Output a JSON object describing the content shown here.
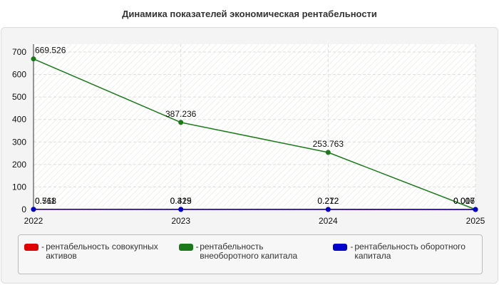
{
  "chart_data": {
    "type": "line",
    "title": "Динамика показателей экономическая рентабельности",
    "categories": [
      "2022",
      "2023",
      "2024",
      "2025"
    ],
    "series": [
      {
        "name": "рентабельность совокупных активов",
        "color": "#e00000",
        "values": [
          0.568,
          0.329,
          0.212,
          0.006
        ]
      },
      {
        "name": "рентабельность внеоборотного капитала",
        "color": "#1a7a1a",
        "values": [
          669.526,
          387.236,
          253.763,
          0.017
        ]
      },
      {
        "name": "рентабельность оборотного капитала",
        "color": "#0000cc",
        "values": [
          0.711,
          0.415,
          0.272,
          0.007
        ]
      }
    ],
    "ylim": [
      0,
      735
    ],
    "yticks": [
      0,
      100,
      200,
      300,
      400,
      500,
      600,
      700
    ],
    "grid": true,
    "legend": "bottom"
  }
}
